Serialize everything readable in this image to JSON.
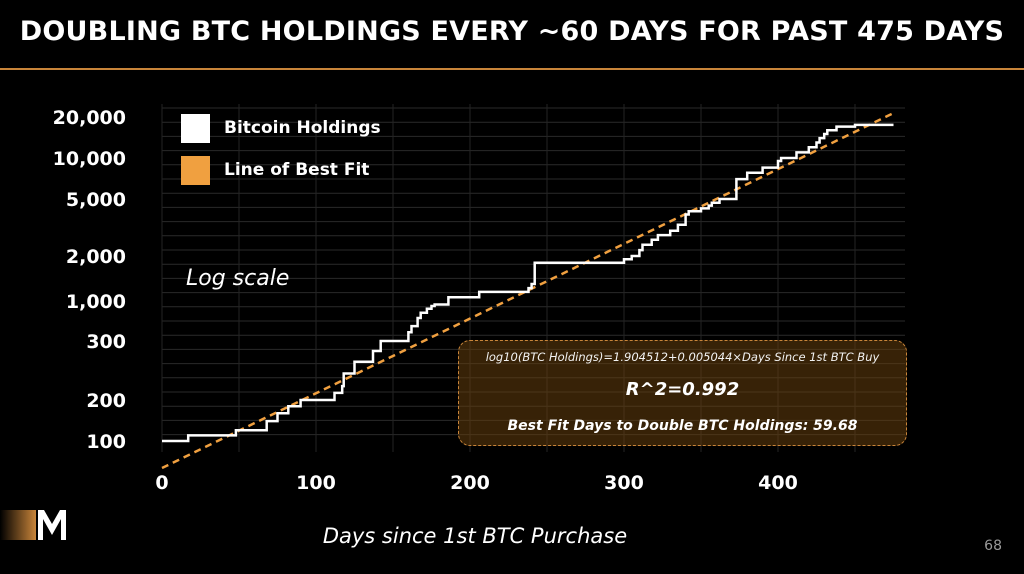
{
  "slide": {
    "title": "DOUBLING BTC HOLDINGS EVERY ~60 DAYS FOR PAST 475 DAYS",
    "page_number": "68"
  },
  "chart_data": {
    "type": "line",
    "title": "DOUBLING BTC HOLDINGS EVERY ~60 DAYS FOR PAST 475 DAYS",
    "xlabel": "Days since 1st BTC Purchase",
    "ylabel": "",
    "log_note": "Log scale",
    "x_ticks": [
      0,
      100,
      200,
      300,
      400
    ],
    "y_ticks": [
      {
        "label": "100",
        "value": 100
      },
      {
        "label": "200",
        "value": 200
      },
      {
        "label": "300",
        "value": 300
      },
      {
        "label": "1,000",
        "value": 1000
      },
      {
        "label": "2,000",
        "value": 2000
      },
      {
        "label": "5,000",
        "value": 5000
      },
      {
        "label": "10,000",
        "value": 10000
      },
      {
        "label": "20,000",
        "value": 20000
      }
    ],
    "legend": {
      "position": "top-left",
      "entries": [
        {
          "label": "Bitcoin Holdings",
          "color": "#ffffff"
        },
        {
          "label": "Line of Best Fit",
          "color": "#f0a040"
        }
      ]
    },
    "series": [
      {
        "name": "Bitcoin Holdings",
        "color": "#ffffff",
        "step": true,
        "x": [
          0,
          17,
          48,
          68,
          75,
          82,
          90,
          112,
          117,
          118,
          125,
          137,
          142,
          160,
          162,
          166,
          168,
          172,
          175,
          177,
          186,
          206,
          238,
          240,
          242,
          295,
          300,
          305,
          310,
          312,
          318,
          322,
          330,
          335,
          340,
          342,
          350,
          355,
          357,
          362,
          373,
          380,
          390,
          400,
          402,
          412,
          420,
          425,
          427,
          430,
          432,
          438,
          450,
          468,
          475
        ],
        "y": [
          100,
          110,
          120,
          140,
          160,
          180,
          200,
          210,
          220,
          240,
          260,
          280,
          300,
          390,
          470,
          600,
          700,
          790,
          860,
          900,
          1060,
          1150,
          1220,
          1300,
          1800,
          1800,
          1900,
          2000,
          2200,
          2400,
          2600,
          2800,
          3000,
          3300,
          3900,
          4100,
          4300,
          4500,
          4700,
          5000,
          7000,
          7800,
          8500,
          9500,
          10000,
          11000,
          12000,
          13000,
          14000,
          15000,
          16000,
          17000,
          17500,
          17500,
          17500
        ]
      },
      {
        "name": "Line of Best Fit",
        "color": "#f0a040",
        "dashed": true,
        "intercept": 1.904512,
        "slope": 0.005044,
        "x_range": [
          0,
          475
        ]
      }
    ],
    "annotation": {
      "equation": "log10(BTC Holdings)=1.904512+0.005044×Days Since 1st BTC Buy",
      "r2": "R^2=0.992",
      "doubling": "Best Fit Days to Double BTC Holdings: 59.68"
    },
    "grid": true
  }
}
